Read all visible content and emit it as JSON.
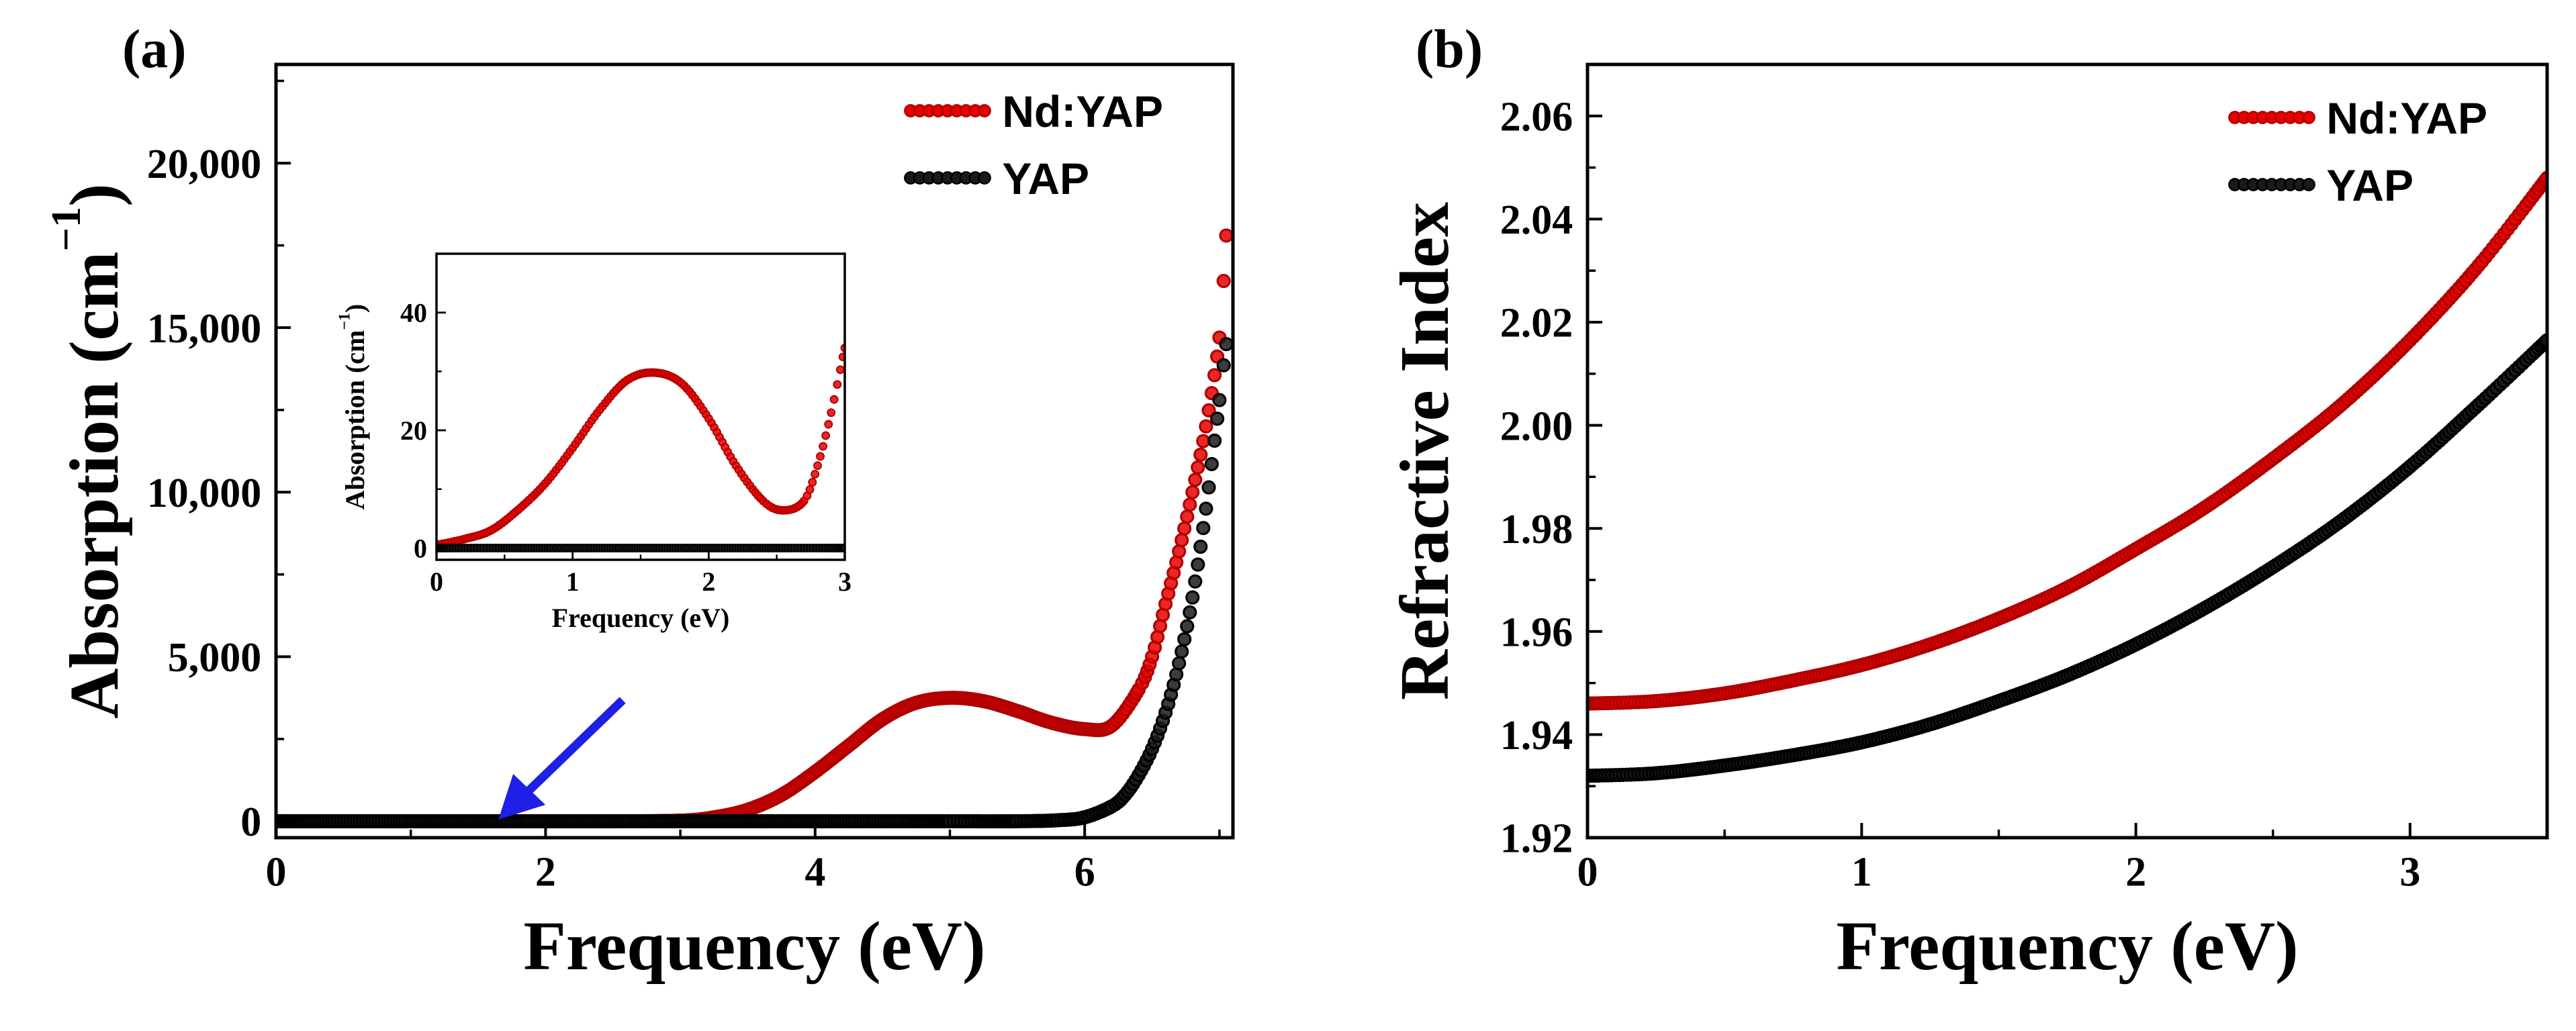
{
  "chart_data": [
    {
      "panel": "(a)",
      "type": "scatter",
      "title": "",
      "xlabel": "Frequency (eV)",
      "ylabel": "Absorption (cm−1)",
      "xlim": [
        0,
        7.1
      ],
      "ylim": [
        -500,
        23000
      ],
      "x_ticks": [
        0,
        2,
        4,
        6
      ],
      "y_ticks": [
        0,
        5000,
        10000,
        15000,
        20000
      ],
      "y_tick_labels": [
        "0",
        "5,000",
        "10,000",
        "15,000",
        "20,000"
      ],
      "legend_position": "top-right",
      "annotation": {
        "type": "arrow",
        "color": "#1f1fe6",
        "points_to": [
          1.65,
          50
        ]
      },
      "series": [
        {
          "name": "Nd:YAP",
          "color": "#e60000",
          "x": [
            0,
            0.5,
            1,
            1.5,
            2,
            2.5,
            3,
            3.25,
            3.5,
            3.75,
            4,
            4.25,
            4.5,
            4.75,
            5,
            5.25,
            5.5,
            5.75,
            6,
            6.2,
            6.4,
            6.5,
            6.6,
            6.7,
            6.8,
            6.9,
            7,
            7.05
          ],
          "y": [
            0,
            0,
            0,
            0,
            0,
            0,
            20,
            120,
            350,
            800,
            1500,
            2300,
            3100,
            3600,
            3750,
            3650,
            3350,
            3000,
            2800,
            2900,
            4000,
            5000,
            6600,
            8200,
            10000,
            12000,
            14700,
            17800
          ]
        },
        {
          "name": "YAP",
          "color": "#1a1a1a",
          "x": [
            0,
            1,
            2,
            3,
            4,
            5,
            5.5,
            5.8,
            6,
            6.2,
            6.3,
            6.4,
            6.5,
            6.6,
            6.7,
            6.8,
            6.9,
            7,
            7.05
          ],
          "y": [
            0,
            0,
            0,
            0,
            0,
            0,
            0,
            30,
            120,
            450,
            800,
            1400,
            2200,
            3300,
            4800,
            6800,
            9500,
            12800,
            14500
          ]
        }
      ],
      "inset": {
        "xlabel": "Frequency (eV)",
        "ylabel": "Absorption (cm−1)",
        "xlim": [
          0,
          3
        ],
        "ylim": [
          -2,
          50
        ],
        "x_ticks": [
          0,
          1,
          2,
          3
        ],
        "y_ticks": [
          0,
          20,
          40
        ],
        "series": [
          {
            "name": "Nd:YAP",
            "color": "#e60000",
            "x": [
              0,
              0.2,
              0.4,
              0.6,
              0.8,
              1,
              1.2,
              1.4,
              1.6,
              1.8,
              2,
              2.2,
              2.4,
              2.55,
              2.7,
              2.8,
              2.9,
              3
            ],
            "y": [
              0.5,
              1.5,
              3,
              6.5,
              11,
              17,
              23.5,
              28.5,
              29.8,
              28,
              22,
              14,
              8,
              6.4,
              8,
              14,
              23,
              34
            ]
          },
          {
            "name": "YAP",
            "color": "#1a1a1a",
            "x": [
              0,
              0.5,
              1,
              1.5,
              2,
              2.5,
              3
            ],
            "y": [
              0,
              0,
              0,
              0,
              0,
              0,
              0
            ]
          }
        ]
      }
    },
    {
      "panel": "(b)",
      "type": "scatter",
      "title": "",
      "xlabel": "Frequency (eV)",
      "ylabel": "Refractive Index",
      "xlim": [
        0,
        3.5
      ],
      "ylim": [
        1.92,
        2.07
      ],
      "x_ticks": [
        0,
        1,
        2,
        3
      ],
      "y_ticks": [
        1.92,
        1.94,
        1.96,
        1.98,
        2.0,
        2.02,
        2.04,
        2.06
      ],
      "y_tick_labels": [
        "1.92",
        "1.94",
        "1.96",
        "1.98",
        "2.00",
        "2.02",
        "2.04",
        "2.06"
      ],
      "legend_position": "top-right",
      "series": [
        {
          "name": "Nd:YAP",
          "color": "#e60000",
          "x": [
            0,
            0.25,
            0.5,
            0.75,
            1,
            1.25,
            1.5,
            1.75,
            2,
            2.25,
            2.5,
            2.75,
            3,
            3.25,
            3.5
          ],
          "y": [
            1.946,
            1.9465,
            1.948,
            1.9505,
            1.9535,
            1.9575,
            1.9625,
            1.9685,
            1.976,
            1.984,
            1.9935,
            2.004,
            2.0165,
            2.031,
            2.048
          ]
        },
        {
          "name": "YAP",
          "color": "#1a1a1a",
          "x": [
            0,
            0.25,
            0.5,
            0.75,
            1,
            1.25,
            1.5,
            1.75,
            2,
            2.25,
            2.5,
            2.75,
            3,
            3.25,
            3.5
          ],
          "y": [
            1.932,
            1.9325,
            1.934,
            1.936,
            1.9385,
            1.942,
            1.9465,
            1.9515,
            1.9575,
            1.9645,
            1.9725,
            1.9815,
            1.992,
            2.004,
            2.0165
          ]
        }
      ]
    }
  ]
}
